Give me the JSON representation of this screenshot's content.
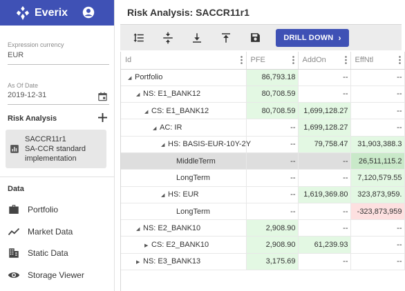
{
  "app": {
    "name": "Everix"
  },
  "sidebar": {
    "currency": {
      "label": "Expression currency",
      "value": "EUR"
    },
    "as_of": {
      "label": "As Of Date",
      "value": "2019-12-31"
    },
    "risk_analysis": {
      "title": "Risk Analysis",
      "card": {
        "title": "SACCR11r1",
        "line2": "SA-CCR standard",
        "line3": "implementation"
      }
    },
    "data_section": {
      "title": "Data",
      "items": [
        {
          "label": "Portfolio",
          "icon": "briefcase-icon"
        },
        {
          "label": "Market Data",
          "icon": "trending-icon"
        },
        {
          "label": "Static Data",
          "icon": "building-icon"
        },
        {
          "label": "Storage Viewer",
          "icon": "eye-icon"
        }
      ]
    }
  },
  "main": {
    "title": "Risk Analysis: SACCR11r1",
    "toolbar": {
      "drill_label": "DRILL DOWN"
    },
    "grid": {
      "columns": [
        "Id",
        "PFE",
        "AddOn",
        "EffNtl"
      ],
      "rows": [
        {
          "id": "Portfolio",
          "pfe": "86,793.18",
          "addon": "--",
          "effntl": "--"
        },
        {
          "id": "NS: E1_BANK12",
          "pfe": "80,708.59",
          "addon": "--",
          "effntl": "--"
        },
        {
          "id": "CS: E1_BANK12",
          "pfe": "80,708.59",
          "addon": "1,699,128.27",
          "effntl": "--"
        },
        {
          "id": "AC: IR",
          "pfe": "--",
          "addon": "1,699,128.27",
          "effntl": "--"
        },
        {
          "id": "HS: BASIS-EUR-10Y-2Y",
          "pfe": "--",
          "addon": "79,758.47",
          "effntl": "31,903,388.3"
        },
        {
          "id": "MiddleTerm",
          "pfe": "--",
          "addon": "--",
          "effntl": "26,511,115.2"
        },
        {
          "id": "LongTerm",
          "pfe": "--",
          "addon": "--",
          "effntl": "7,120,579.55"
        },
        {
          "id": "HS: EUR",
          "pfe": "--",
          "addon": "1,619,369.80",
          "effntl": "323,873,959."
        },
        {
          "id": "LongTerm",
          "pfe": "--",
          "addon": "--",
          "effntl": "-323,873,959"
        },
        {
          "id": "NS: E2_BANK10",
          "pfe": "2,908.90",
          "addon": "--",
          "effntl": "--"
        },
        {
          "id": "CS: E2_BANK10",
          "pfe": "2,908.90",
          "addon": "61,239.93",
          "effntl": "--"
        },
        {
          "id": "NS: E3_BANK13",
          "pfe": "3,175.69",
          "addon": "--",
          "effntl": "--"
        }
      ]
    }
  },
  "colors": {
    "primary": "#3f51b5",
    "positive_bg": "#e3f8e3",
    "negative_bg": "#fde0e0",
    "selected_bg": "#dedede"
  }
}
